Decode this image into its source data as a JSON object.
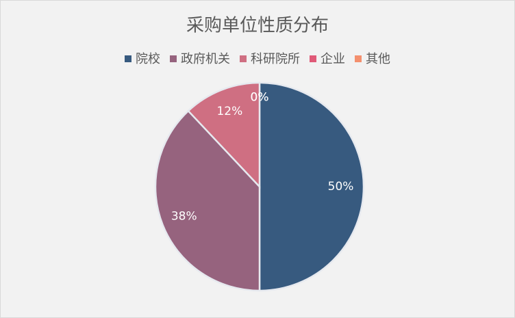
{
  "chart_data": {
    "type": "pie",
    "title": "采购单位性质分布",
    "categories": [
      "院校",
      "政府机关",
      "科研院所",
      "企业",
      "其他"
    ],
    "values": [
      50,
      38,
      12,
      0,
      0
    ],
    "value_labels": [
      "50%",
      "38%",
      "12%",
      "0%",
      "0%"
    ],
    "colors": [
      "#375a7f",
      "#96637e",
      "#cf6f82",
      "#e05a78",
      "#f4906e"
    ],
    "legend": "top"
  }
}
